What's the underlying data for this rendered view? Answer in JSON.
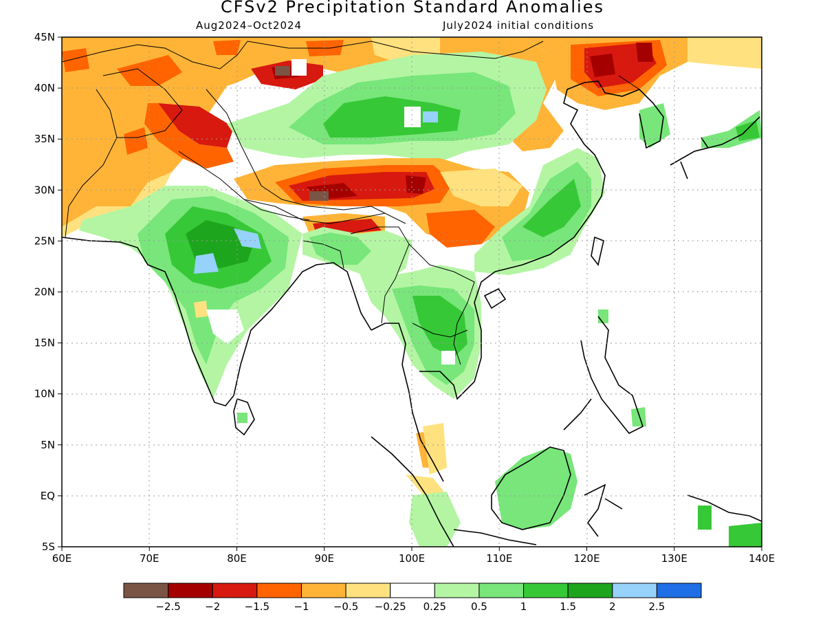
{
  "title": "CFSv2 Precipitation Standard Anomalies",
  "subtitle_left": "Aug2024–Oct2024",
  "subtitle_right": "July2024 initial conditions",
  "map": {
    "lon_range": [
      60,
      140
    ],
    "lat_range": [
      -5,
      45
    ],
    "x_ticks": [
      {
        "value": 60,
        "label": "60E"
      },
      {
        "value": 70,
        "label": "70E"
      },
      {
        "value": 80,
        "label": "80E"
      },
      {
        "value": 90,
        "label": "90E"
      },
      {
        "value": 100,
        "label": "100E"
      },
      {
        "value": 110,
        "label": "110E"
      },
      {
        "value": 120,
        "label": "120E"
      },
      {
        "value": 130,
        "label": "130E"
      },
      {
        "value": 140,
        "label": "140E"
      }
    ],
    "y_ticks": [
      {
        "value": 45,
        "label": "45N"
      },
      {
        "value": 40,
        "label": "40N"
      },
      {
        "value": 35,
        "label": "35N"
      },
      {
        "value": 30,
        "label": "30N"
      },
      {
        "value": 25,
        "label": "25N"
      },
      {
        "value": 20,
        "label": "20N"
      },
      {
        "value": 15,
        "label": "15N"
      },
      {
        "value": 10,
        "label": "10N"
      },
      {
        "value": 5,
        "label": "5N"
      },
      {
        "value": 0,
        "label": "EQ"
      },
      {
        "value": -5,
        "label": "5S"
      }
    ]
  },
  "colorbar": {
    "colors": [
      "#7a5545",
      "#a50000",
      "#d7190f",
      "#ff6400",
      "#ffb437",
      "#ffe27f",
      "#ffffff",
      "#b4f5a4",
      "#78e67a",
      "#37c837",
      "#1ea51e",
      "#96d2fa",
      "#1e6ee6"
    ],
    "labels": [
      "−2.5",
      "−2",
      "−1.5",
      "−1",
      "−0.5",
      "−0.25",
      "0.25",
      "0.5",
      "1",
      "1.5",
      "2",
      "2.5"
    ]
  }
}
